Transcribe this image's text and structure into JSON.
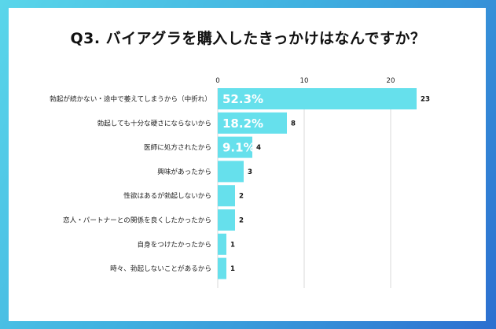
{
  "title": "Q3. バイアグラを購入したきっかけはなんですか？",
  "colors": {
    "bar": "#66e0ec",
    "grid": "#d9d9d9",
    "text": "#222222",
    "pct_text": "#ffffff",
    "frame_start": "#5ad6ea",
    "frame_end": "#2c6fd0"
  },
  "chart_data": {
    "type": "bar",
    "orientation": "horizontal",
    "title": "Q3. バイアグラを購入したきっかけはなんですか？",
    "xlabel": "",
    "ylabel": "",
    "xlim": [
      0,
      23
    ],
    "xticks": [
      0,
      10,
      20
    ],
    "grid": true,
    "categories": [
      "勃起が続かない・途中で萎えてしまうから（中折れ）",
      "勃起しても十分な硬さにならないから",
      "医師に処方されたから",
      "興味があったから",
      "性欲はあるが勃起しないから",
      "恋人・パートナーとの関係を良くしたかったから",
      "自身をつけたかったから",
      "時々、勃起しないことがあるから"
    ],
    "values": [
      23,
      8,
      4,
      3,
      2,
      2,
      1,
      1
    ],
    "percent_labels": [
      "52.3%",
      "18.2%",
      "9.1%",
      "",
      "",
      "",
      "",
      ""
    ]
  }
}
